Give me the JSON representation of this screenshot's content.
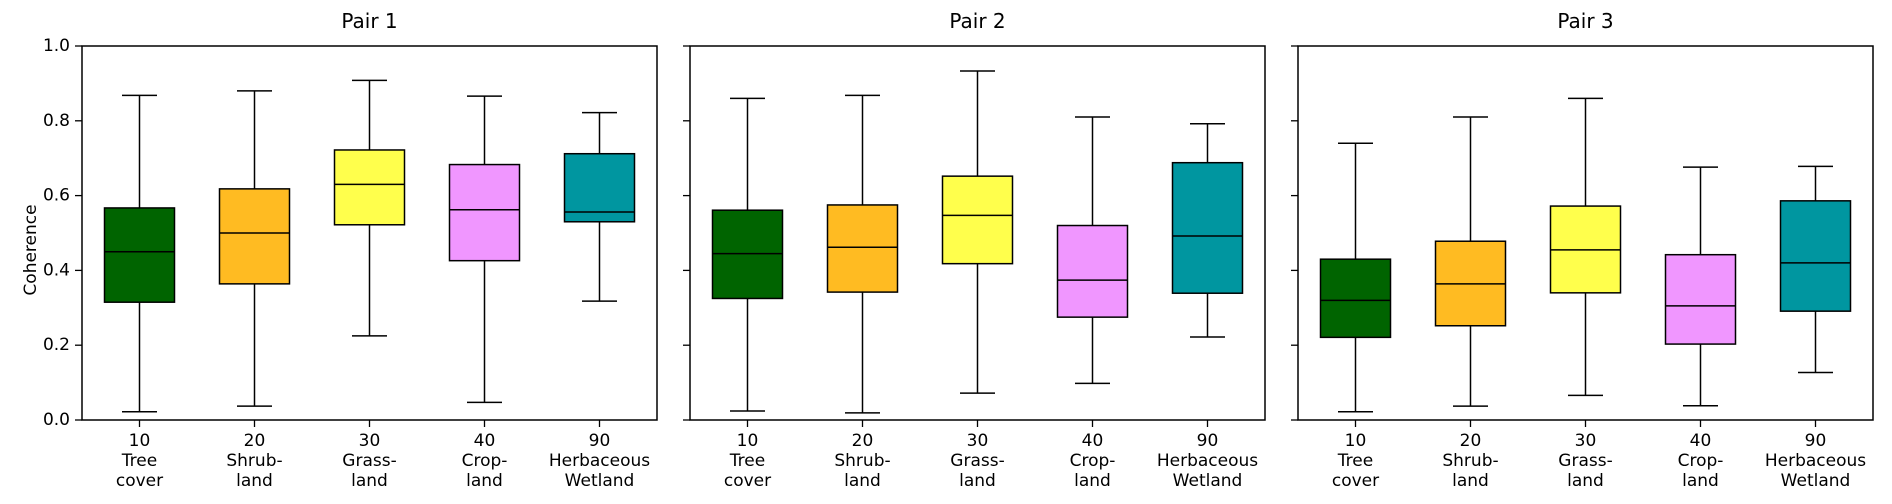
{
  "chart_data": [
    {
      "type": "box",
      "title": "Pair 1",
      "ylabel": "Coherence",
      "ylim": [
        0,
        1
      ],
      "yticks": [
        "0.0",
        "0.2",
        "0.4",
        "0.6",
        "0.8",
        "1.0"
      ],
      "categories": [
        {
          "code": "10",
          "line1": "Tree",
          "line2": "cover"
        },
        {
          "code": "20",
          "line1": "Shrub-",
          "line2": "land"
        },
        {
          "code": "30",
          "line1": "Grass-",
          "line2": "land"
        },
        {
          "code": "40",
          "line1": "Crop-",
          "line2": "land"
        },
        {
          "code": "90",
          "line1": "Herbaceous",
          "line2": "Wetland"
        }
      ],
      "boxes": [
        {
          "whislo": 0.022,
          "q1": 0.315,
          "med": 0.45,
          "q3": 0.567,
          "whishi": 0.868
        },
        {
          "whislo": 0.037,
          "q1": 0.364,
          "med": 0.5,
          "q3": 0.618,
          "whishi": 0.88
        },
        {
          "whislo": 0.225,
          "q1": 0.522,
          "med": 0.63,
          "q3": 0.722,
          "whishi": 0.908
        },
        {
          "whislo": 0.047,
          "q1": 0.426,
          "med": 0.562,
          "q3": 0.683,
          "whishi": 0.866
        },
        {
          "whislo": 0.318,
          "q1": 0.53,
          "med": 0.556,
          "q3": 0.712,
          "whishi": 0.822
        }
      ]
    },
    {
      "type": "box",
      "title": "Pair 2",
      "ylim": [
        0,
        1
      ],
      "categories": [
        {
          "code": "10",
          "line1": "Tree",
          "line2": "cover"
        },
        {
          "code": "20",
          "line1": "Shrub-",
          "line2": "land"
        },
        {
          "code": "30",
          "line1": "Grass-",
          "line2": "land"
        },
        {
          "code": "40",
          "line1": "Crop-",
          "line2": "land"
        },
        {
          "code": "90",
          "line1": "Herbaceous",
          "line2": "Wetland"
        }
      ],
      "boxes": [
        {
          "whislo": 0.024,
          "q1": 0.325,
          "med": 0.445,
          "q3": 0.561,
          "whishi": 0.86
        },
        {
          "whislo": 0.019,
          "q1": 0.342,
          "med": 0.462,
          "q3": 0.575,
          "whishi": 0.868
        },
        {
          "whislo": 0.072,
          "q1": 0.418,
          "med": 0.547,
          "q3": 0.652,
          "whishi": 0.933
        },
        {
          "whislo": 0.098,
          "q1": 0.275,
          "med": 0.374,
          "q3": 0.52,
          "whishi": 0.81
        },
        {
          "whislo": 0.222,
          "q1": 0.339,
          "med": 0.492,
          "q3": 0.688,
          "whishi": 0.792
        }
      ]
    },
    {
      "type": "box",
      "title": "Pair 3",
      "ylim": [
        0,
        1
      ],
      "categories": [
        {
          "code": "10",
          "line1": "Tree",
          "line2": "cover"
        },
        {
          "code": "20",
          "line1": "Shrub-",
          "line2": "land"
        },
        {
          "code": "30",
          "line1": "Grass-",
          "line2": "land"
        },
        {
          "code": "40",
          "line1": "Crop-",
          "line2": "land"
        },
        {
          "code": "90",
          "line1": "Herbaceous",
          "line2": "Wetland"
        }
      ],
      "boxes": [
        {
          "whislo": 0.022,
          "q1": 0.221,
          "med": 0.32,
          "q3": 0.43,
          "whishi": 0.74
        },
        {
          "whislo": 0.037,
          "q1": 0.252,
          "med": 0.364,
          "q3": 0.478,
          "whishi": 0.81
        },
        {
          "whislo": 0.066,
          "q1": 0.34,
          "med": 0.455,
          "q3": 0.572,
          "whishi": 0.86
        },
        {
          "whislo": 0.038,
          "q1": 0.203,
          "med": 0.305,
          "q3": 0.442,
          "whishi": 0.676
        },
        {
          "whislo": 0.127,
          "q1": 0.291,
          "med": 0.42,
          "q3": 0.586,
          "whishi": 0.678
        }
      ]
    }
  ],
  "colors": [
    "#006400",
    "#ffbb22",
    "#ffff4c",
    "#f096ff",
    "#0096a0"
  ]
}
